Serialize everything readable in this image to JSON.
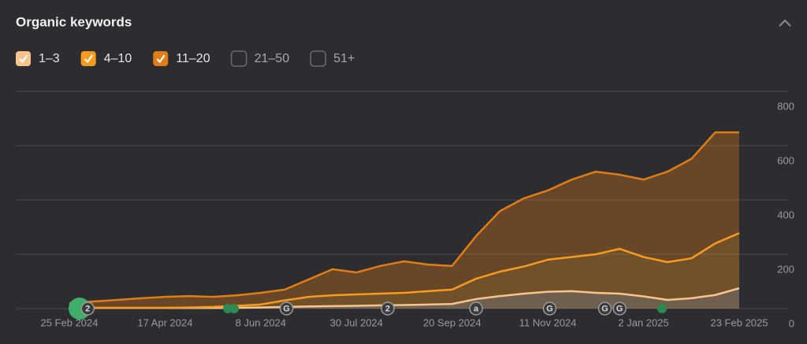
{
  "chart_data": {
    "type": "area",
    "stacked": true,
    "title": "Organic keywords",
    "x": [
      "25 Feb 2024",
      "9 Mar 2024",
      "22 Mar 2024",
      "4 Apr 2024",
      "17 Apr 2024",
      "30 Apr 2024",
      "13 May 2024",
      "26 May 2024",
      "8 Jun 2024",
      "21 Jun 2024",
      "4 Jul 2024",
      "17 Jul 2024",
      "30 Jul 2024",
      "12 Aug 2024",
      "25 Aug 2024",
      "7 Sep 2024",
      "20 Sep 2024",
      "3 Oct 2024",
      "16 Oct 2024",
      "29 Oct 2024",
      "11 Nov 2024",
      "24 Nov 2024",
      "7 Dec 2024",
      "20 Dec 2024",
      "2 Jan 2025",
      "15 Jan 2025",
      "28 Jan 2025",
      "10 Feb 2025",
      "23 Feb 2025"
    ],
    "series": [
      {
        "name": "1–3",
        "color": "#f9c48c",
        "values": [
          2,
          2,
          2,
          2,
          2,
          2,
          2,
          3,
          4,
          6,
          8,
          9,
          10,
          12,
          13,
          15,
          17,
          35,
          46,
          55,
          62,
          64,
          58,
          55,
          45,
          32,
          38,
          50,
          75
        ]
      },
      {
        "name": "4–10",
        "color": "#fb9a1e",
        "values": [
          1,
          1,
          1,
          1,
          1,
          2,
          4,
          7,
          11,
          24,
          35,
          40,
          42,
          43,
          45,
          49,
          53,
          75,
          90,
          100,
          118,
          126,
          142,
          165,
          145,
          139,
          147,
          190,
          203
        ]
      },
      {
        "name": "11–20",
        "color": "#e27d16",
        "values": [
          17,
          23,
          29,
          35,
          40,
          42,
          37,
          39,
          43,
          40,
          64,
          96,
          81,
          102,
          116,
          98,
          87,
          157,
          223,
          251,
          255,
          285,
          304,
          273,
          285,
          333,
          366,
          409,
          371
        ]
      }
    ],
    "inactive_series": [
      "21–50",
      "51+"
    ],
    "xlim": [
      "25 Feb 2024",
      "23 Feb 2025"
    ],
    "xticks": [
      "25 Feb 2024",
      "17 Apr 2024",
      "8 Jun 2024",
      "30 Jul 2024",
      "20 Sep 2024",
      "11 Nov 2024",
      "2 Jan 2025",
      "23 Feb 2025"
    ],
    "ylim": [
      0,
      800
    ],
    "yticks": [
      0,
      200,
      400,
      600,
      800
    ],
    "grid": true,
    "annotations": [
      {
        "x": "6 Mar 2024",
        "label": "2"
      },
      {
        "x": "22 Jun 2024",
        "label": "G"
      },
      {
        "x": "16 Aug 2024",
        "label": "2"
      },
      {
        "x": "3 Oct 2024",
        "label": "a"
      },
      {
        "x": "12 Nov 2024",
        "label": "G"
      },
      {
        "x": "12 Dec 2024",
        "label": "G"
      },
      {
        "x": "20 Dec 2024",
        "label": "G"
      }
    ]
  }
}
